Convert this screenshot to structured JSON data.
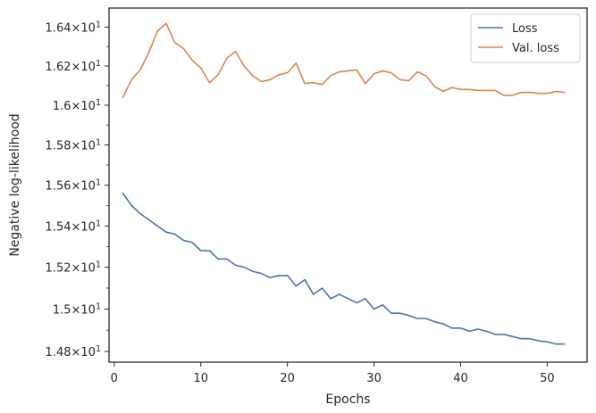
{
  "chart_data": {
    "type": "line",
    "title": "",
    "xlabel": "Epochs",
    "ylabel": "Negative log-likelihood",
    "xlim": [
      -0.6,
      54.6
    ],
    "ylim": [
      14.75,
      16.5
    ],
    "yscale": "log",
    "grid": false,
    "legend_position": "top-right",
    "x_ticks": [
      {
        "value": 0,
        "label": "0"
      },
      {
        "value": 10,
        "label": "10"
      },
      {
        "value": 20,
        "label": "20"
      },
      {
        "value": 30,
        "label": "30"
      },
      {
        "value": 40,
        "label": "40"
      },
      {
        "value": 50,
        "label": "50"
      }
    ],
    "y_ticks": [
      {
        "value": 14.8,
        "mantissa": "1.48",
        "times": "×",
        "base": "10",
        "exp": "1"
      },
      {
        "value": 15.0,
        "mantissa": "1.5",
        "times": "×",
        "base": "10",
        "exp": "1"
      },
      {
        "value": 15.2,
        "mantissa": "1.52",
        "times": "×",
        "base": "10",
        "exp": "1"
      },
      {
        "value": 15.4,
        "mantissa": "1.54",
        "times": "×",
        "base": "10",
        "exp": "1"
      },
      {
        "value": 15.6,
        "mantissa": "1.56",
        "times": "×",
        "base": "10",
        "exp": "1"
      },
      {
        "value": 15.8,
        "mantissa": "1.58",
        "times": "×",
        "base": "10",
        "exp": "1"
      },
      {
        "value": 16.0,
        "mantissa": "1.6",
        "times": "×",
        "base": "10",
        "exp": "1"
      },
      {
        "value": 16.2,
        "mantissa": "1.62",
        "times": "×",
        "base": "10",
        "exp": "1"
      },
      {
        "value": 16.4,
        "mantissa": "1.64",
        "times": "×",
        "base": "10",
        "exp": "1"
      }
    ],
    "x": [
      1,
      2,
      3,
      4,
      5,
      6,
      7,
      8,
      9,
      10,
      11,
      12,
      13,
      14,
      15,
      16,
      17,
      18,
      19,
      20,
      21,
      22,
      23,
      24,
      25,
      26,
      27,
      28,
      29,
      30,
      31,
      32,
      33,
      34,
      35,
      36,
      37,
      38,
      39,
      40,
      41,
      42,
      43,
      44,
      45,
      46,
      47,
      48,
      49,
      50,
      51,
      52
    ],
    "series": [
      {
        "name": "Loss",
        "color": "#4c72b0",
        "values": [
          15.56,
          15.5,
          15.46,
          15.43,
          15.4,
          15.37,
          15.36,
          15.33,
          15.32,
          15.28,
          15.28,
          15.24,
          15.24,
          15.21,
          15.2,
          15.18,
          15.17,
          15.15,
          15.16,
          15.16,
          15.11,
          15.14,
          15.07,
          15.1,
          15.05,
          15.07,
          15.05,
          15.03,
          15.05,
          15.0,
          15.02,
          14.98,
          14.98,
          14.97,
          14.955,
          14.955,
          14.94,
          14.93,
          14.91,
          14.91,
          14.895,
          14.905,
          14.895,
          14.88,
          14.88,
          14.87,
          14.86,
          14.86,
          14.85,
          14.845,
          14.835,
          14.835
        ]
      },
      {
        "name": "Val. loss",
        "color": "#dd8452",
        "values": [
          16.04,
          16.13,
          16.18,
          16.27,
          16.38,
          16.42,
          16.32,
          16.29,
          16.23,
          16.19,
          16.115,
          16.155,
          16.24,
          16.275,
          16.2,
          16.15,
          16.12,
          16.13,
          16.155,
          16.165,
          16.215,
          16.11,
          16.115,
          16.105,
          16.15,
          16.17,
          16.175,
          16.18,
          16.11,
          16.16,
          16.175,
          16.165,
          16.13,
          16.125,
          16.17,
          16.15,
          16.095,
          16.07,
          16.09,
          16.08,
          16.08,
          16.075,
          16.075,
          16.075,
          16.05,
          16.05,
          16.065,
          16.065,
          16.06,
          16.06,
          16.07,
          16.065
        ]
      }
    ]
  }
}
